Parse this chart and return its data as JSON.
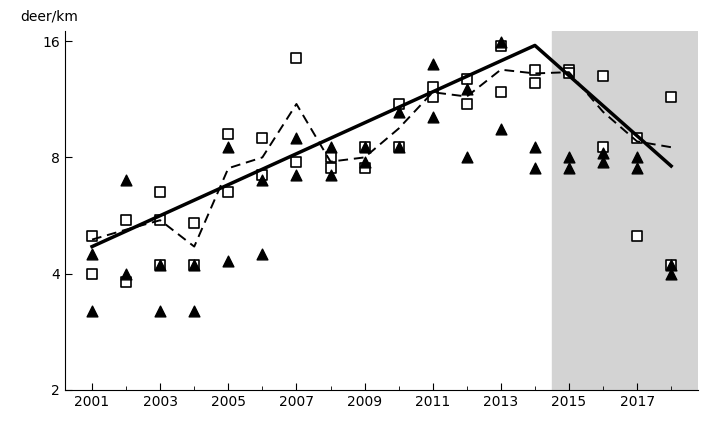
{
  "square_x": [
    2001,
    2001,
    2002,
    2002,
    2003,
    2003,
    2003,
    2004,
    2004,
    2005,
    2005,
    2006,
    2006,
    2007,
    2007,
    2008,
    2008,
    2009,
    2009,
    2010,
    2010,
    2011,
    2011,
    2012,
    2012,
    2013,
    2013,
    2014,
    2014,
    2015,
    2015,
    2016,
    2016,
    2017,
    2017,
    2018,
    2018
  ],
  "square_y": [
    5.0,
    4.0,
    5.5,
    3.8,
    6.5,
    5.5,
    4.2,
    5.4,
    4.2,
    9.2,
    6.5,
    9.0,
    7.2,
    14.5,
    7.8,
    8.0,
    7.5,
    8.5,
    7.5,
    11.0,
    8.5,
    12.2,
    11.5,
    12.8,
    11.0,
    15.5,
    11.8,
    13.5,
    12.5,
    13.5,
    13.2,
    13.0,
    8.5,
    9.0,
    5.0,
    11.5,
    4.2
  ],
  "triangle_x": [
    2001,
    2001,
    2002,
    2002,
    2003,
    2003,
    2004,
    2004,
    2005,
    2005,
    2006,
    2006,
    2007,
    2007,
    2008,
    2008,
    2009,
    2009,
    2010,
    2010,
    2011,
    2011,
    2012,
    2012,
    2013,
    2013,
    2014,
    2014,
    2015,
    2015,
    2016,
    2016,
    2017,
    2017,
    2018,
    2018
  ],
  "triangle_y": [
    4.5,
    3.2,
    7.0,
    4.0,
    4.2,
    3.2,
    4.2,
    3.2,
    8.5,
    4.3,
    7.0,
    4.5,
    9.0,
    7.2,
    8.5,
    7.2,
    8.5,
    7.8,
    10.5,
    8.5,
    14.0,
    10.2,
    12.0,
    8.0,
    15.9,
    9.5,
    8.5,
    7.5,
    8.0,
    7.5,
    8.2,
    7.8,
    8.0,
    7.5,
    4.2,
    4.0
  ],
  "solid_line_x": [
    2001,
    2014,
    2018
  ],
  "solid_line_y": [
    4.7,
    15.6,
    7.6
  ],
  "dashed_line_x": [
    2001,
    2002,
    2003,
    2004,
    2005,
    2006,
    2007,
    2008,
    2009,
    2010,
    2011,
    2012,
    2013,
    2014,
    2015,
    2016,
    2017,
    2018
  ],
  "dashed_line_y": [
    4.9,
    5.2,
    5.5,
    4.7,
    7.5,
    8.0,
    11.0,
    7.8,
    8.0,
    9.5,
    11.8,
    11.5,
    13.5,
    13.2,
    13.3,
    10.5,
    8.8,
    8.5
  ],
  "shade_start": 2014.5,
  "shade_end": 2018.8,
  "xlim": [
    2000.2,
    2018.8
  ],
  "ylim": [
    2,
    17
  ],
  "yticks": [
    2,
    4,
    8,
    16
  ],
  "xticks": [
    2001,
    2003,
    2005,
    2007,
    2009,
    2011,
    2013,
    2015,
    2017
  ],
  "ylabel": "deer/km",
  "shade_color": "#d3d3d3",
  "background_color": "#ffffff"
}
